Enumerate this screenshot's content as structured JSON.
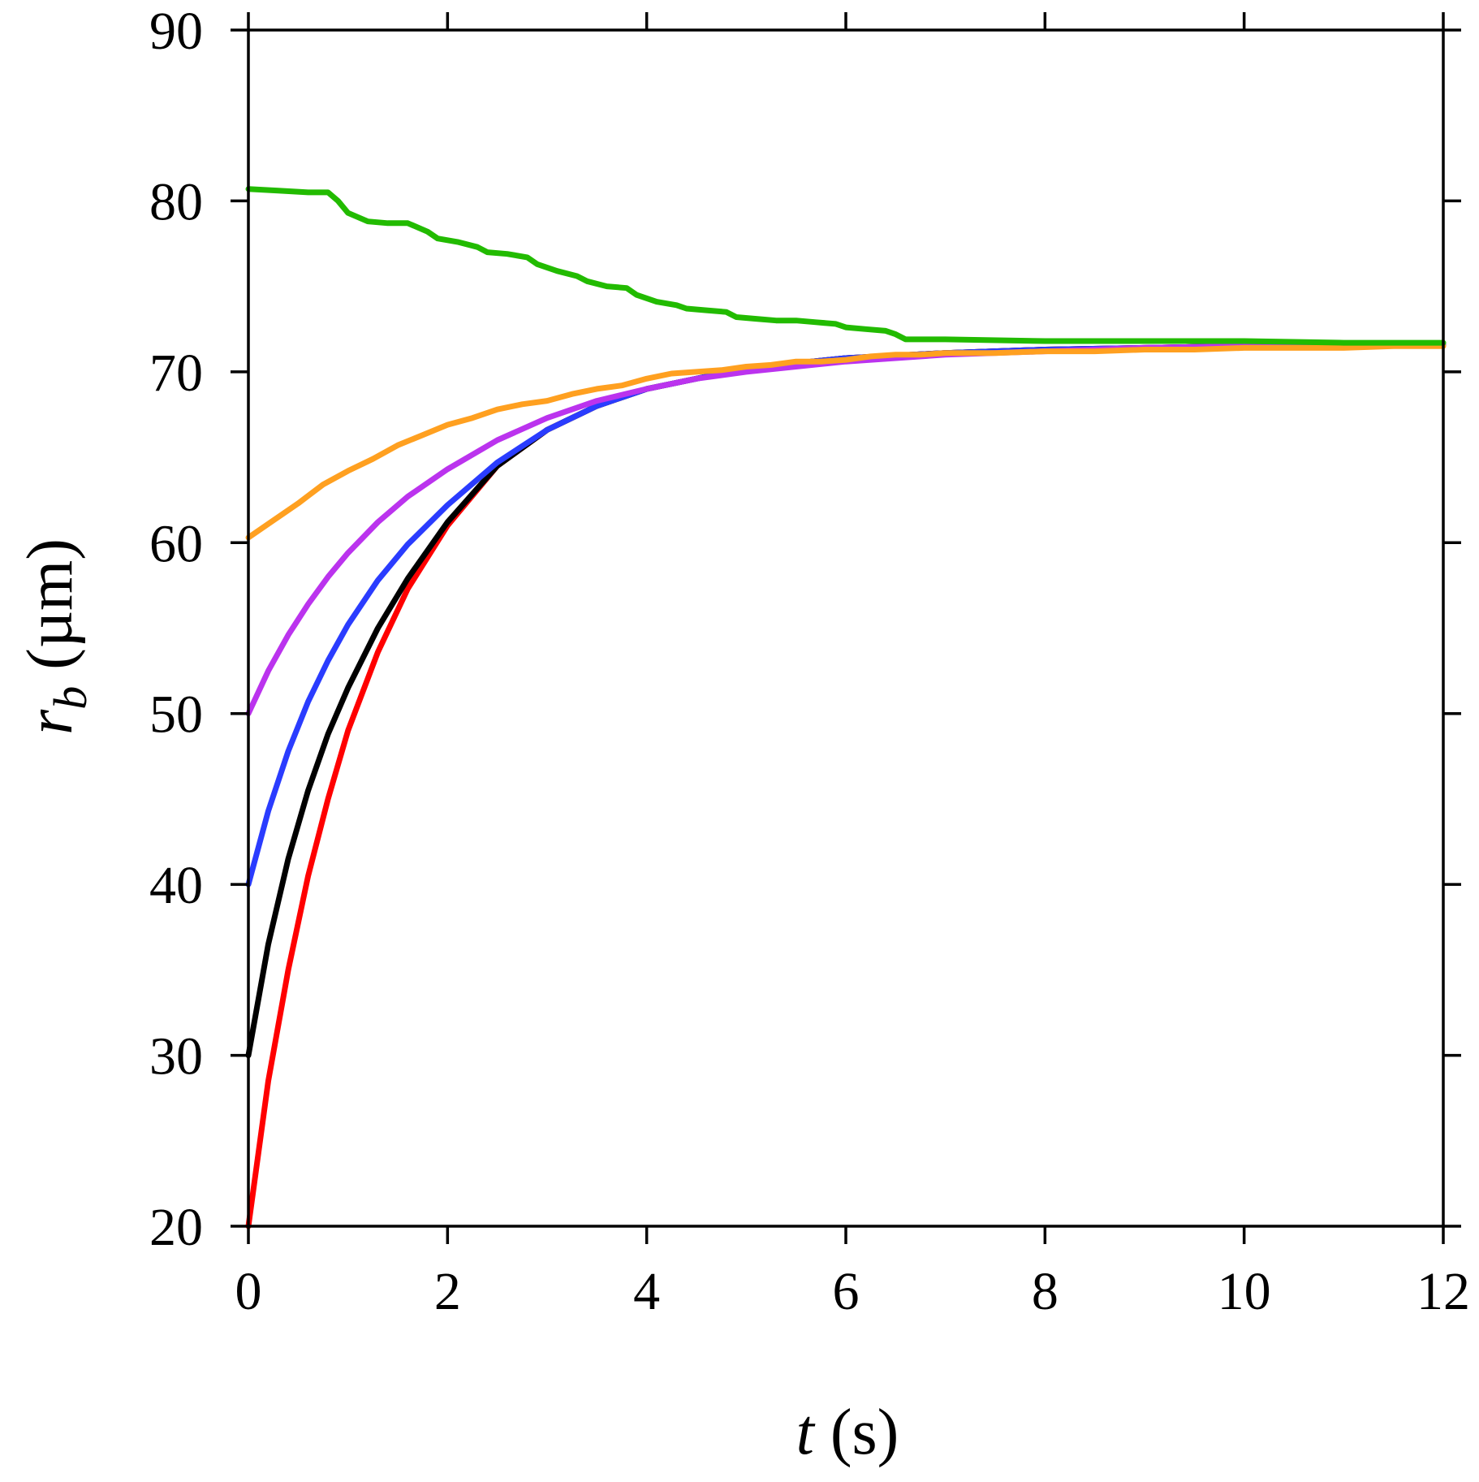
{
  "chart_data": {
    "type": "line",
    "title": "",
    "xlabel": {
      "var": "t",
      "unit": " (s)"
    },
    "ylabel": {
      "var": "r",
      "sub": "b",
      "unit": " (µm)"
    },
    "xlim": [
      0,
      12
    ],
    "ylim": [
      20,
      90
    ],
    "xticks": [
      0,
      2,
      4,
      6,
      8,
      10,
      12
    ],
    "yticks": [
      20,
      30,
      40,
      50,
      60,
      70,
      80,
      90
    ],
    "grid": false,
    "legend": "none",
    "series": [
      {
        "color": "#ff0000",
        "x": [
          0,
          0.2,
          0.4,
          0.6,
          0.8,
          1.0,
          1.3,
          1.6,
          2.0,
          2.5,
          3.0,
          3.5,
          4.0,
          5.0,
          6.0,
          7.0,
          8.0,
          9.0,
          10.0,
          11.0,
          12.0
        ],
        "y": [
          20.0,
          28.5,
          35.0,
          40.5,
          45.0,
          49.0,
          53.6,
          57.3,
          61.0,
          64.5,
          66.6,
          68.0,
          69.0,
          70.2,
          70.8,
          71.1,
          71.3,
          71.4,
          71.5,
          71.6,
          71.6
        ]
      },
      {
        "color": "#000000",
        "x": [
          0,
          0.2,
          0.4,
          0.6,
          0.8,
          1.0,
          1.3,
          1.6,
          2.0,
          2.5,
          3.0,
          3.5,
          4.0,
          5.0,
          6.0,
          7.0,
          8.0,
          9.0,
          10.0,
          11.0,
          12.0
        ],
        "y": [
          30.0,
          36.5,
          41.5,
          45.5,
          48.8,
          51.5,
          55.0,
          57.9,
          61.2,
          64.5,
          66.6,
          68.0,
          69.0,
          70.2,
          70.8,
          71.1,
          71.3,
          71.4,
          71.5,
          71.6,
          71.6
        ]
      },
      {
        "color": "#2a3cff",
        "x": [
          0,
          0.2,
          0.4,
          0.6,
          0.8,
          1.0,
          1.3,
          1.6,
          2.0,
          2.5,
          3.0,
          3.5,
          4.0,
          5.0,
          6.0,
          7.0,
          8.0,
          9.0,
          10.0,
          11.0,
          12.0
        ],
        "y": [
          40.0,
          44.3,
          47.8,
          50.7,
          53.1,
          55.2,
          57.8,
          59.9,
          62.2,
          64.7,
          66.6,
          68.0,
          69.0,
          70.2,
          70.8,
          71.1,
          71.3,
          71.4,
          71.5,
          71.6,
          71.6
        ]
      },
      {
        "color": "#bb33ee",
        "x": [
          0,
          0.2,
          0.4,
          0.6,
          0.8,
          1.0,
          1.3,
          1.6,
          2.0,
          2.5,
          3.0,
          3.5,
          4.0,
          4.5,
          5.0,
          6.0,
          7.0,
          8.0,
          9.0,
          10.0,
          11.0,
          12.0
        ],
        "y": [
          50.0,
          52.5,
          54.6,
          56.4,
          58.0,
          59.4,
          61.2,
          62.7,
          64.3,
          66.0,
          67.3,
          68.3,
          69.0,
          69.6,
          70.0,
          70.6,
          71.0,
          71.2,
          71.4,
          71.5,
          71.6,
          71.6
        ]
      },
      {
        "color": "#ffa020",
        "x": [
          0,
          0.25,
          0.5,
          0.75,
          1.0,
          1.25,
          1.5,
          1.75,
          2.0,
          2.25,
          2.5,
          2.75,
          3.0,
          3.25,
          3.5,
          3.75,
          4.0,
          4.25,
          4.5,
          4.75,
          5.0,
          5.25,
          5.5,
          5.75,
          6.0,
          6.25,
          6.5,
          6.75,
          7.0,
          7.5,
          8.0,
          8.5,
          9.0,
          9.5,
          10.0,
          10.5,
          11.0,
          11.5,
          12.0
        ],
        "y": [
          60.3,
          61.3,
          62.3,
          63.4,
          64.2,
          64.9,
          65.7,
          66.3,
          66.9,
          67.3,
          67.8,
          68.1,
          68.3,
          68.7,
          69.0,
          69.2,
          69.6,
          69.9,
          70.0,
          70.1,
          70.3,
          70.4,
          70.6,
          70.6,
          70.7,
          70.9,
          71.0,
          71.0,
          71.1,
          71.1,
          71.2,
          71.2,
          71.3,
          71.3,
          71.4,
          71.4,
          71.4,
          71.5,
          71.5
        ]
      },
      {
        "color": "#22bb00",
        "x": [
          0,
          0.3,
          0.6,
          0.8,
          0.9,
          1.0,
          1.2,
          1.4,
          1.6,
          1.8,
          1.9,
          2.1,
          2.3,
          2.4,
          2.6,
          2.8,
          2.9,
          3.1,
          3.3,
          3.4,
          3.6,
          3.8,
          3.9,
          4.1,
          4.3,
          4.4,
          4.6,
          4.8,
          4.9,
          5.1,
          5.3,
          5.5,
          5.7,
          5.9,
          6.0,
          6.2,
          6.4,
          6.5,
          6.6,
          7.0,
          8.0,
          9.0,
          10.0,
          11.0,
          12.0
        ],
        "y": [
          80.7,
          80.6,
          80.5,
          80.5,
          80.0,
          79.3,
          78.8,
          78.7,
          78.7,
          78.2,
          77.8,
          77.6,
          77.3,
          77.0,
          76.9,
          76.7,
          76.3,
          75.9,
          75.6,
          75.3,
          75.0,
          74.9,
          74.5,
          74.1,
          73.9,
          73.7,
          73.6,
          73.5,
          73.2,
          73.1,
          73.0,
          73.0,
          72.9,
          72.8,
          72.6,
          72.5,
          72.4,
          72.2,
          71.9,
          71.9,
          71.8,
          71.8,
          71.8,
          71.7,
          71.7
        ]
      }
    ]
  }
}
